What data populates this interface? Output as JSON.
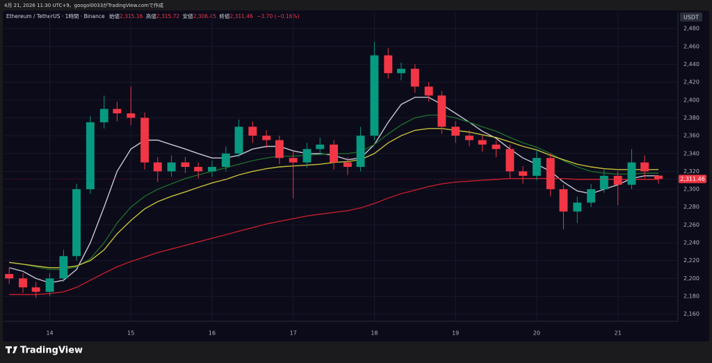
{
  "meta": {
    "created": "4月 21, 2026 11:30 UTC+9、googol0033がTradingView.comで作成",
    "brand": "TradingView"
  },
  "header": {
    "symbol": "Ethereum / TetherUS · 1時間 · Binance",
    "open_label": "始値",
    "open": "2,315.16",
    "high_label": "高値",
    "high": "2,315.72",
    "low_label": "安値",
    "low": "2,306.45",
    "close_label": "終値",
    "close": "2,311.46",
    "change": "−3.70 (−0.16%)"
  },
  "chart_data": {
    "type": "candlestick",
    "currency": "USDT",
    "x": [
      13.5,
      13.67,
      13.83,
      14,
      14.17,
      14.33,
      14.5,
      14.67,
      14.83,
      15,
      15.17,
      15.33,
      15.5,
      15.67,
      15.83,
      16,
      16.17,
      16.33,
      16.5,
      16.67,
      16.83,
      17,
      17.17,
      17.33,
      17.5,
      17.67,
      17.83,
      18,
      18.17,
      18.33,
      18.5,
      18.67,
      18.83,
      19,
      19.17,
      19.33,
      19.5,
      19.67,
      19.83,
      20,
      20.17,
      20.33,
      20.5,
      20.67,
      20.83,
      21,
      21.17,
      21.33,
      21.5
    ],
    "open": [
      2205,
      2200,
      2190,
      2185,
      2200,
      2225,
      2300,
      2375,
      2390,
      2385,
      2380,
      2330,
      2320,
      2330,
      2325,
      2320,
      2325,
      2340,
      2370,
      2360,
      2355,
      2335,
      2330,
      2345,
      2350,
      2330,
      2325,
      2360,
      2450,
      2430,
      2435,
      2415,
      2405,
      2370,
      2360,
      2355,
      2350,
      2345,
      2320,
      2315,
      2335,
      2300,
      2275,
      2285,
      2300,
      2315,
      2305,
      2330,
      2315.16
    ],
    "high": [
      2212,
      2206,
      2196,
      2206,
      2232,
      2306,
      2382,
      2405,
      2398,
      2415,
      2386,
      2336,
      2338,
      2336,
      2330,
      2332,
      2348,
      2378,
      2376,
      2366,
      2360,
      2342,
      2352,
      2358,
      2355,
      2336,
      2370,
      2465,
      2458,
      2442,
      2440,
      2420,
      2410,
      2376,
      2366,
      2360,
      2355,
      2350,
      2326,
      2345,
      2340,
      2305,
      2292,
      2306,
      2322,
      2320,
      2345,
      2338,
      2315.72
    ],
    "low": [
      2194,
      2184,
      2178,
      2180,
      2196,
      2220,
      2295,
      2368,
      2376,
      2372,
      2322,
      2308,
      2314,
      2318,
      2312,
      2314,
      2320,
      2336,
      2352,
      2346,
      2328,
      2290,
      2324,
      2338,
      2322,
      2316,
      2320,
      2355,
      2424,
      2422,
      2408,
      2398,
      2362,
      2352,
      2348,
      2342,
      2336,
      2312,
      2306,
      2310,
      2292,
      2255,
      2262,
      2280,
      2296,
      2282,
      2300,
      2312,
      2306.45
    ],
    "close": [
      2200,
      2190,
      2185,
      2200,
      2225,
      2300,
      2375,
      2390,
      2385,
      2380,
      2330,
      2320,
      2330,
      2325,
      2320,
      2325,
      2340,
      2370,
      2360,
      2355,
      2335,
      2330,
      2345,
      2350,
      2330,
      2325,
      2360,
      2450,
      2430,
      2435,
      2415,
      2405,
      2370,
      2360,
      2355,
      2350,
      2345,
      2320,
      2315,
      2335,
      2300,
      2275,
      2285,
      2300,
      2315,
      2305,
      2330,
      2320,
      2311.46
    ],
    "up_color": "#089981",
    "down_color": "#f23645",
    "series": [
      {
        "color": "#c9c9d6",
        "values": [
          2212,
          2208,
          2200,
          2195,
          2198,
          2210,
          2240,
          2280,
          2320,
          2345,
          2355,
          2355,
          2350,
          2345,
          2340,
          2335,
          2335,
          2338,
          2345,
          2348,
          2348,
          2343,
          2340,
          2340,
          2338,
          2333,
          2335,
          2350,
          2375,
          2395,
          2403,
          2403,
          2395,
          2385,
          2375,
          2365,
          2357,
          2345,
          2335,
          2328,
          2320,
          2308,
          2298,
          2295,
          2300,
          2305,
          2312,
          2315,
          2315
        ]
      },
      {
        "color": "#1f6b2a",
        "values": [
          2218,
          2216,
          2213,
          2210,
          2210,
          2213,
          2222,
          2240,
          2262,
          2280,
          2292,
          2300,
          2306,
          2312,
          2316,
          2320,
          2324,
          2328,
          2332,
          2335,
          2337,
          2337,
          2338,
          2339,
          2340,
          2340,
          2342,
          2350,
          2362,
          2372,
          2380,
          2383,
          2383,
          2380,
          2375,
          2370,
          2365,
          2358,
          2352,
          2347,
          2340,
          2332,
          2325,
          2320,
          2318,
          2317,
          2317,
          2318,
          2318
        ]
      },
      {
        "color": "#c8c13a",
        "values": [
          2218,
          2216,
          2214,
          2212,
          2212,
          2214,
          2220,
          2232,
          2250,
          2265,
          2278,
          2286,
          2292,
          2297,
          2302,
          2307,
          2311,
          2316,
          2320,
          2323,
          2325,
          2326,
          2327,
          2328,
          2330,
          2331,
          2333,
          2340,
          2352,
          2360,
          2366,
          2368,
          2368,
          2366,
          2364,
          2361,
          2358,
          2353,
          2348,
          2344,
          2338,
          2333,
          2328,
          2325,
          2323,
          2322,
          2322,
          2322,
          2322
        ]
      },
      {
        "color": "#c41e2a",
        "values": [
          2182,
          2182,
          2182,
          2183,
          2185,
          2190,
          2198,
          2206,
          2213,
          2219,
          2224,
          2229,
          2233,
          2237,
          2241,
          2245,
          2249,
          2253,
          2257,
          2261,
          2264,
          2267,
          2270,
          2272,
          2274,
          2276,
          2279,
          2284,
          2290,
          2295,
          2299,
          2303,
          2306,
          2308,
          2309,
          2310,
          2311,
          2312,
          2312,
          2312,
          2312,
          2312,
          2311,
          2311,
          2311,
          2311,
          2311,
          2311,
          2311
        ]
      }
    ],
    "price_tag": {
      "value": 2311.46,
      "label": "2,311.46"
    },
    "xlim": [
      13.43,
      21.74
    ],
    "xticks": [
      14,
      15,
      16,
      17,
      18,
      19,
      20,
      21
    ],
    "ylim": [
      2152,
      2498
    ],
    "yticks": [
      {
        "value": 2160,
        "label": "2,160"
      },
      {
        "value": 2180,
        "label": "2,180"
      },
      {
        "value": 2200,
        "label": "2,200"
      },
      {
        "value": 2220,
        "label": "2,220"
      },
      {
        "value": 2240,
        "label": "2,240"
      },
      {
        "value": 2260,
        "label": "2,260"
      },
      {
        "value": 2280,
        "label": "2,280"
      },
      {
        "value": 2300,
        "label": "2,300"
      },
      {
        "value": 2320,
        "label": "2,320"
      },
      {
        "value": 2340,
        "label": "2,340"
      },
      {
        "value": 2360,
        "label": "2,360"
      },
      {
        "value": 2380,
        "label": "2,380"
      },
      {
        "value": 2400,
        "label": "2,400"
      },
      {
        "value": 2420,
        "label": "2,420"
      },
      {
        "value": 2440,
        "label": "2,440"
      },
      {
        "value": 2460,
        "label": "2,460"
      },
      {
        "value": 2480,
        "label": "2,480"
      }
    ],
    "grid": true
  }
}
